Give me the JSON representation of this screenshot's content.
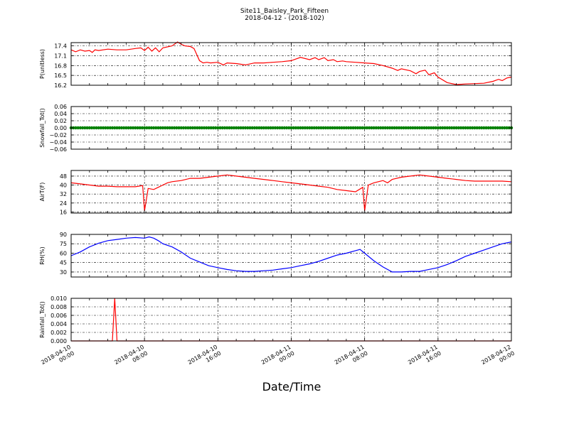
{
  "figure": {
    "title_line1": "Site11_Baisley_Park_Fifteen",
    "title_line2": "2018-04-12 - (2018-102)",
    "xlabel": "Date/Time",
    "x_ticks": [
      {
        "line1": "2018-04-10",
        "line2": "00:00"
      },
      {
        "line1": "2018-04-10",
        "line2": "08:00"
      },
      {
        "line1": "2018-04-10",
        "line2": "16:00"
      },
      {
        "line1": "2018-04-11",
        "line2": "00:00"
      },
      {
        "line1": "2018-04-11",
        "line2": "08:00"
      },
      {
        "line1": "2018-04-11",
        "line2": "16:00"
      },
      {
        "line1": "2018-04-12",
        "line2": "00:00"
      }
    ],
    "x_hours_range": [
      0,
      48
    ]
  },
  "chart_data": [
    {
      "type": "line",
      "ylabel": "P(unitless)",
      "ylim": [
        16.2,
        17.5
      ],
      "yticks": [
        "16.2",
        "16.5",
        "16.8",
        "17.1",
        "17.4"
      ],
      "ytick_values": [
        16.2,
        16.5,
        16.8,
        17.1,
        17.4
      ],
      "color": "#ff0000",
      "grid": true,
      "x": [
        0,
        0.5,
        1,
        1.5,
        2,
        2.3,
        2.6,
        3,
        4,
        5,
        6,
        7,
        7.6,
        8,
        8.4,
        8.8,
        9.2,
        9.6,
        10,
        11,
        11.6,
        12,
        12.4,
        13,
        13.4,
        14,
        14.4,
        14.8,
        15.2,
        16,
        16.6,
        17,
        18,
        19,
        20,
        21,
        22,
        23,
        24,
        25,
        26,
        26.6,
        27,
        27.6,
        28,
        28.6,
        29,
        29.6,
        30,
        31,
        32,
        33,
        34,
        35,
        35.6,
        36,
        37,
        37.6,
        38,
        38.6,
        39,
        39.6,
        40,
        41,
        42,
        43,
        44,
        45,
        46,
        46.6,
        47,
        47.5,
        48
      ],
      "y": [
        17.28,
        17.22,
        17.28,
        17.24,
        17.26,
        17.2,
        17.28,
        17.26,
        17.3,
        17.28,
        17.28,
        17.32,
        17.34,
        17.26,
        17.36,
        17.24,
        17.34,
        17.22,
        17.34,
        17.4,
        17.52,
        17.45,
        17.4,
        17.38,
        17.32,
        16.95,
        16.88,
        16.9,
        16.88,
        16.9,
        16.82,
        16.88,
        16.86,
        16.82,
        16.88,
        16.88,
        16.9,
        16.92,
        16.95,
        17.05,
        16.98,
        17.04,
        16.98,
        17.04,
        16.95,
        16.98,
        16.92,
        16.94,
        16.92,
        16.9,
        16.88,
        16.86,
        16.8,
        16.72,
        16.65,
        16.7,
        16.64,
        16.55,
        16.62,
        16.66,
        16.52,
        16.58,
        16.45,
        16.28,
        16.22,
        16.24,
        16.25,
        16.26,
        16.32,
        16.38,
        16.34,
        16.42,
        16.45
      ]
    },
    {
      "type": "scatter",
      "ylabel": "Snowfall_Tot()",
      "ylim": [
        -0.06,
        0.06
      ],
      "yticks": [
        "−0.06",
        "−0.04",
        "−0.02",
        "0.00",
        "0.02",
        "0.04",
        "0.06"
      ],
      "ytick_values": [
        -0.06,
        -0.04,
        -0.02,
        0.0,
        0.02,
        0.04,
        0.06
      ],
      "color": "#008000",
      "grid": true,
      "constant_value": 0.0,
      "x_range": [
        0,
        48
      ],
      "n_points": 193
    },
    {
      "type": "line",
      "ylabel": "AirT(F)",
      "ylim": [
        15,
        53
      ],
      "yticks": [
        "16",
        "24",
        "32",
        "40",
        "48"
      ],
      "ytick_values": [
        16,
        24,
        32,
        40,
        48
      ],
      "color": "#ff0000",
      "grid": true,
      "x": [
        0,
        1,
        2,
        3,
        4,
        5,
        6,
        7,
        7.8,
        8.0,
        8.4,
        9,
        9.5,
        10,
        10.5,
        11,
        12,
        13,
        14,
        15,
        16,
        17,
        18,
        19,
        20,
        21,
        22,
        23,
        24,
        25,
        26,
        27,
        28,
        29,
        30,
        31,
        31.8,
        32.0,
        32.4,
        33,
        34,
        34.5,
        35,
        36,
        37,
        38,
        39,
        40,
        41,
        42,
        43,
        44,
        45,
        46,
        47,
        48
      ],
      "y": [
        42,
        41,
        40,
        39,
        39,
        38.5,
        38.5,
        38.5,
        39.5,
        17,
        37,
        36,
        38,
        40,
        42,
        43,
        44,
        46,
        46,
        47,
        48,
        49,
        48,
        47,
        46,
        45,
        44,
        43,
        42,
        41,
        40,
        39,
        38,
        36,
        35,
        34,
        38,
        17,
        40,
        42,
        44,
        42,
        45,
        47,
        48,
        49,
        48,
        47,
        46,
        45,
        44,
        43.5,
        43.5,
        43.5,
        43.5,
        43
      ]
    },
    {
      "type": "line",
      "ylabel": "RH(%)",
      "ylim": [
        22,
        90
      ],
      "yticks": [
        "30",
        "45",
        "60",
        "75",
        "90"
      ],
      "ytick_values": [
        30,
        45,
        60,
        75,
        90
      ],
      "color": "#0000ff",
      "grid": true,
      "x": [
        0,
        1,
        2,
        3,
        4,
        5,
        6,
        7,
        8,
        8.5,
        9,
        9.5,
        10,
        11,
        12,
        13,
        14,
        15,
        16,
        17,
        18,
        19,
        20,
        21,
        22,
        23,
        24,
        25,
        26,
        27,
        28,
        29,
        30,
        31,
        31.5,
        32,
        33,
        34,
        35,
        36,
        37,
        38,
        39,
        40,
        41,
        42,
        43,
        44,
        45,
        46,
        47,
        48
      ],
      "y": [
        56,
        62,
        70,
        76,
        80,
        82,
        84,
        85,
        84,
        86,
        84,
        80,
        75,
        70,
        62,
        52,
        46,
        40,
        37,
        34,
        32,
        31,
        31,
        32,
        33,
        35,
        37,
        40,
        43,
        47,
        52,
        57,
        60,
        64,
        66,
        60,
        48,
        38,
        30,
        30,
        31,
        31,
        34,
        37,
        42,
        48,
        55,
        60,
        65,
        70,
        75,
        78
      ]
    },
    {
      "type": "line",
      "ylabel": "Rainfall_Tot()",
      "ylim": [
        0.0,
        0.01
      ],
      "yticks": [
        "0.000",
        "0.002",
        "0.004",
        "0.006",
        "0.008",
        "0.010"
      ],
      "ytick_values": [
        0.0,
        0.002,
        0.004,
        0.006,
        0.008,
        0.01
      ],
      "color": "#ff0000",
      "grid": true,
      "x": [
        0,
        4.5,
        4.75,
        5.0,
        48
      ],
      "y": [
        0,
        0,
        0.01,
        0,
        0
      ]
    }
  ]
}
